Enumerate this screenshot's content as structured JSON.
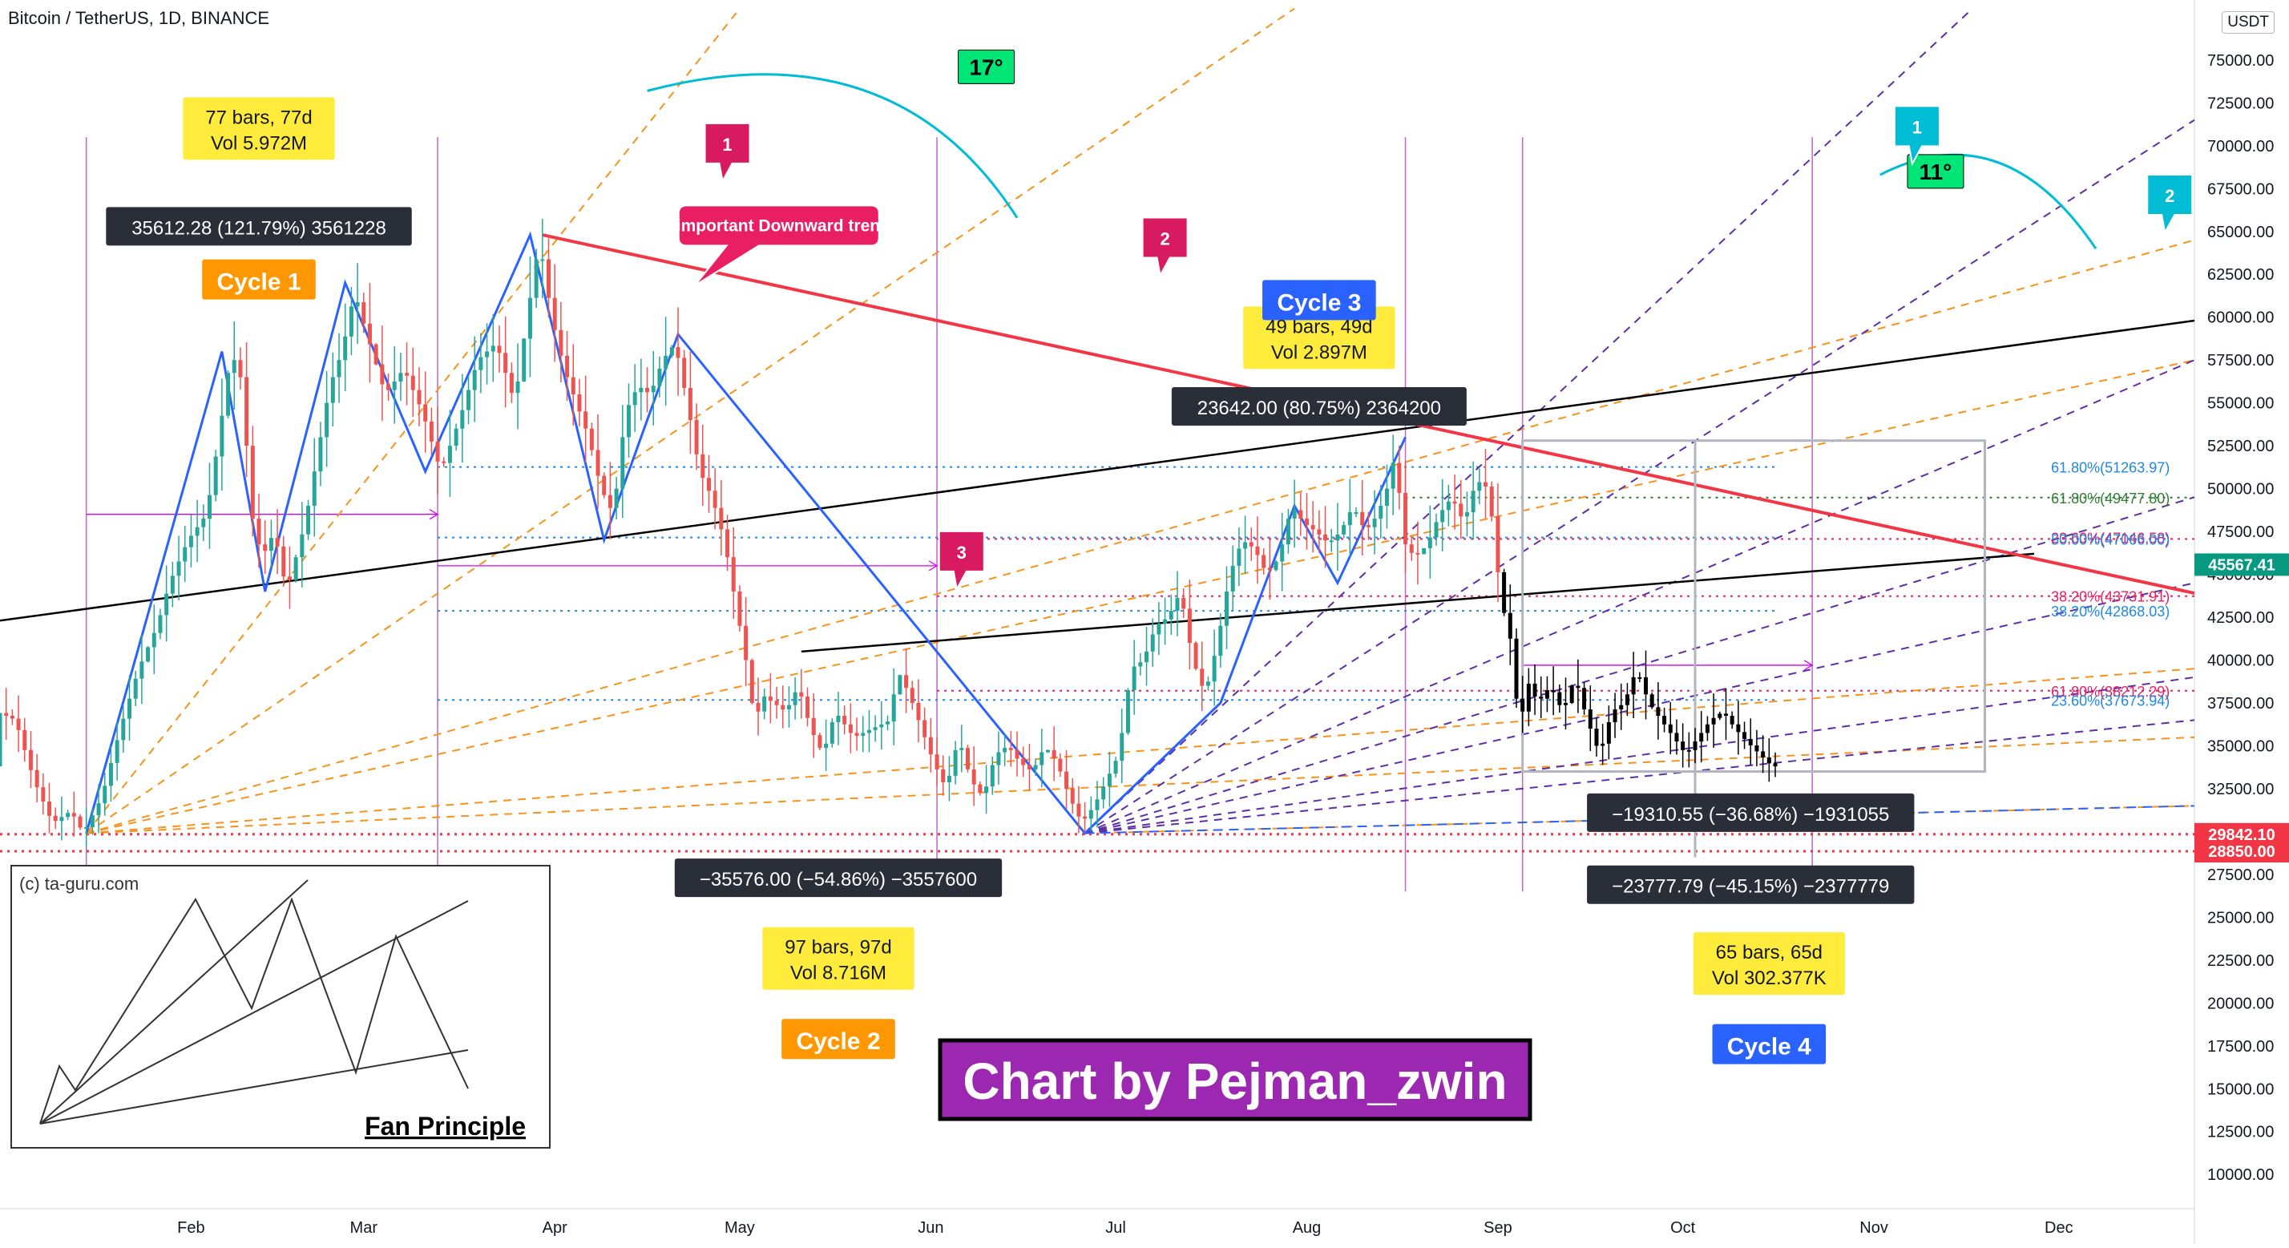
{
  "header": {
    "title": "Bitcoin / TetherUS, 1D, BINANCE",
    "currency": "USDT"
  },
  "colors": {
    "trendline": "#f23645",
    "black_line": "#000000",
    "orange_fan": "#f7931a",
    "purple_fan": "#5b2fa8",
    "blue_zigzag": "#2962ff",
    "magenta": "#d500f9",
    "label_dark": "#2a2e39",
    "label_yellow": "#ffeb3b",
    "cycle_orange": "#ff9800",
    "cycle_blue": "#2962ff",
    "marker": "#d81b60",
    "teal_marker": "#00bcd4",
    "angle_green": "#00e676",
    "credit_bg": "#9c27b0"
  },
  "chart_data": {
    "type": "candlestick",
    "y_axis": {
      "ylim": [
        8000,
        78500
      ],
      "ticks": [
        10000,
        12500,
        15000,
        17500,
        20000,
        22500,
        25000,
        27500,
        30000,
        32500,
        35000,
        37500,
        40000,
        42500,
        45000,
        47500,
        50000,
        52500,
        55000,
        57500,
        60000,
        62500,
        65000,
        67500,
        70000,
        72500,
        75000
      ],
      "tick_labels": [
        "10000.00",
        "12500.00",
        "15000.00",
        "17500.00",
        "20000.00",
        "22500.00",
        "25000.00",
        "27500.00",
        "30000.00",
        "32500.00",
        "35000.00",
        "37500.00",
        "40000.00",
        "42500.00",
        "45000.00",
        "47500.00",
        "50000.00",
        "52500.00",
        "55000.00",
        "57500.00",
        "60000.00",
        "62500.00",
        "65000.00",
        "67500.00",
        "70000.00",
        "72500.00",
        "75000.00"
      ]
    },
    "x_axis": {
      "labels": [
        {
          "label": "Feb",
          "day": 31
        },
        {
          "label": "Mar",
          "day": 59
        },
        {
          "label": "Apr",
          "day": 90
        },
        {
          "label": "May",
          "day": 120
        },
        {
          "label": "Jun",
          "day": 151
        },
        {
          "label": "Jul",
          "day": 181
        },
        {
          "label": "Aug",
          "day": 212
        },
        {
          "label": "Sep",
          "day": 243
        },
        {
          "label": "Oct",
          "day": 273
        },
        {
          "label": "Nov",
          "day": 304
        },
        {
          "label": "Dec",
          "day": 334
        }
      ],
      "xlim": [
        0,
        356
      ]
    },
    "price_keypoints": [
      [
        0,
        37000
      ],
      [
        3,
        36500
      ],
      [
        6,
        33000
      ],
      [
        9,
        30500
      ],
      [
        12,
        31200
      ],
      [
        14,
        29900
      ],
      [
        17,
        32000
      ],
      [
        20,
        36000
      ],
      [
        23,
        39500
      ],
      [
        26,
        42000
      ],
      [
        28,
        44500
      ],
      [
        31,
        47000
      ],
      [
        34,
        48500
      ],
      [
        36,
        53000
      ],
      [
        38,
        58000
      ],
      [
        40,
        56000
      ],
      [
        41,
        49000
      ],
      [
        43,
        46000
      ],
      [
        45,
        47500
      ],
      [
        47,
        44000
      ],
      [
        50,
        48000
      ],
      [
        52,
        52000
      ],
      [
        54,
        56000
      ],
      [
        56,
        58000
      ],
      [
        58,
        61500
      ],
      [
        60,
        59000
      ],
      [
        63,
        55500
      ],
      [
        66,
        57000
      ],
      [
        69,
        54500
      ],
      [
        72,
        51000
      ],
      [
        75,
        54000
      ],
      [
        78,
        57500
      ],
      [
        81,
        58500
      ],
      [
        84,
        55000
      ],
      [
        86,
        60000
      ],
      [
        88,
        64500
      ],
      [
        90,
        60000
      ],
      [
        92,
        57000
      ],
      [
        94,
        55000
      ],
      [
        96,
        53000
      ],
      [
        98,
        50000
      ],
      [
        100,
        48500
      ],
      [
        102,
        54500
      ],
      [
        104,
        56000
      ],
      [
        106,
        55500
      ],
      [
        108,
        57500
      ],
      [
        110,
        58500
      ],
      [
        112,
        55000
      ],
      [
        114,
        51000
      ],
      [
        116,
        49500
      ],
      [
        118,
        47000
      ],
      [
        119,
        45000
      ],
      [
        120,
        43000
      ],
      [
        122,
        39000
      ],
      [
        123,
        36000
      ],
      [
        124,
        38000
      ],
      [
        126,
        37500
      ],
      [
        128,
        37000
      ],
      [
        130,
        38500
      ],
      [
        132,
        36000
      ],
      [
        134,
        34500
      ],
      [
        136,
        37000
      ],
      [
        139,
        35500
      ],
      [
        142,
        36000
      ],
      [
        145,
        36500
      ],
      [
        146,
        39500
      ],
      [
        148,
        38000
      ],
      [
        150,
        36000
      ],
      [
        152,
        34000
      ],
      [
        154,
        32500
      ],
      [
        156,
        35500
      ],
      [
        158,
        33000
      ],
      [
        160,
        32000
      ],
      [
        162,
        34500
      ],
      [
        164,
        35000
      ],
      [
        166,
        34000
      ],
      [
        168,
        33500
      ],
      [
        170,
        35000
      ],
      [
        172,
        34000
      ],
      [
        174,
        32000
      ],
      [
        176,
        30500
      ],
      [
        178,
        31500
      ],
      [
        180,
        33000
      ],
      [
        182,
        34500
      ],
      [
        184,
        39500
      ],
      [
        186,
        40000
      ],
      [
        188,
        42000
      ],
      [
        190,
        42500
      ],
      [
        192,
        44000
      ],
      [
        194,
        40000
      ],
      [
        196,
        38000
      ],
      [
        198,
        41000
      ],
      [
        200,
        45000
      ],
      [
        202,
        47000
      ],
      [
        204,
        46500
      ],
      [
        206,
        45000
      ],
      [
        208,
        46000
      ],
      [
        210,
        49000
      ],
      [
        212,
        48000
      ],
      [
        214,
        47500
      ],
      [
        216,
        46800
      ],
      [
        218,
        47500
      ],
      [
        220,
        49000
      ],
      [
        222,
        47500
      ],
      [
        224,
        48500
      ],
      [
        226,
        50500
      ],
      [
        227,
        52500
      ],
      [
        228,
        47000
      ],
      [
        230,
        46000
      ],
      [
        232,
        46700
      ],
      [
        234,
        48500
      ],
      [
        236,
        49500
      ],
      [
        238,
        48000
      ],
      [
        240,
        50500
      ],
      [
        242,
        50000
      ],
      [
        244,
        43500
      ],
      [
        246,
        40500
      ],
      [
        247,
        35000
      ],
      [
        248,
        39000
      ],
      [
        250,
        37500
      ],
      [
        252,
        38500
      ],
      [
        254,
        37000
      ],
      [
        256,
        39000
      ],
      [
        258,
        36500
      ],
      [
        260,
        34500
      ],
      [
        262,
        37000
      ],
      [
        264,
        37500
      ],
      [
        266,
        39500
      ],
      [
        268,
        37500
      ],
      [
        270,
        36500
      ],
      [
        272,
        35500
      ],
      [
        274,
        34500
      ],
      [
        276,
        35500
      ],
      [
        278,
        36500
      ],
      [
        280,
        37000
      ],
      [
        282,
        36000
      ],
      [
        284,
        35200
      ],
      [
        286,
        34500
      ],
      [
        288,
        33800
      ]
    ],
    "black_candle_start_day": 244,
    "markers": [
      {
        "id": "1",
        "x": 118,
        "y": 70000,
        "color": "#d81b60"
      },
      {
        "id": "2",
        "x": 189,
        "y": 64500,
        "color": "#d81b60"
      },
      {
        "id": "3",
        "x": 156,
        "y": 46200,
        "color": "#d81b60"
      },
      {
        "id": "1",
        "x": 311,
        "y": 71000,
        "color": "#00bcd4"
      },
      {
        "id": "2",
        "x": 352,
        "y": 67000,
        "color": "#00bcd4"
      }
    ],
    "angles": [
      {
        "label": "17°",
        "x": 160,
        "y": 74600
      },
      {
        "label": "11°",
        "x": 314,
        "y": 68500
      }
    ],
    "fib_levels": [
      {
        "label": "61.80%(51263.97)",
        "y": 51263.97,
        "color": "#1e88e5"
      },
      {
        "label": "61.80%(49477.80)",
        "y": 49477.8,
        "color": "#2e7d32"
      },
      {
        "label": "23.60%(47146.58)",
        "y": 47146.58,
        "color": "#e91e63"
      },
      {
        "label": "50.00%(47066.00)",
        "y": 47066.0,
        "color": "#1e88e5"
      },
      {
        "label": "38.20%(43731.91)",
        "y": 43731.91,
        "color": "#e91e63"
      },
      {
        "label": "38.20%(42868.03)",
        "y": 42868.03,
        "color": "#1e88e5"
      },
      {
        "label": "61.80%(38212.29)",
        "y": 38212.29,
        "color": "#e91e63"
      },
      {
        "label": "23.60%(37673.94)",
        "y": 37673.94,
        "color": "#1e88e5"
      }
    ],
    "price_tags": [
      {
        "value": "45567.41",
        "y": 45567.41,
        "bg": "#089981"
      },
      {
        "value": "29842.10",
        "y": 29842.1,
        "bg": "#f23645"
      },
      {
        "value": "28850.00",
        "y": 28850.0,
        "bg": "#f23645"
      }
    ],
    "cycle_labels": [
      {
        "text": "Cycle 1",
        "x": 42,
        "y": 62200,
        "bg": "#ff9800",
        "fg": "#ffffff"
      },
      {
        "text": "Cycle 2",
        "x": 136,
        "y": 17900,
        "bg": "#ff9800",
        "fg": "#ffffff"
      },
      {
        "text": "Cycle 3",
        "x": 214,
        "y": 61000,
        "bg": "#2962ff",
        "fg": "#ffffff"
      },
      {
        "text": "Cycle 4",
        "x": 287,
        "y": 17600,
        "bg": "#2962ff",
        "fg": "#ffffff"
      }
    ],
    "yellow_boxes": [
      {
        "lines": [
          "77 bars, 77d",
          "Vol 5.972M"
        ],
        "x": 42,
        "y": 71000
      },
      {
        "lines": [
          "97 bars, 97d",
          "Vol 8.716M"
        ],
        "x": 136,
        "y": 22600
      },
      {
        "lines": [
          "49 bars, 49d",
          "Vol 2.897M"
        ],
        "x": 214,
        "y": 58800
      },
      {
        "lines": [
          "65 bars, 65d",
          "Vol 302.377K"
        ],
        "x": 287,
        "y": 22300
      }
    ],
    "dark_boxes": [
      {
        "text": "35612.28 (121.79%) 3561228",
        "x": 42,
        "y": 65300
      },
      {
        "text": "−35576.00 (−54.86%) −3557600",
        "x": 136,
        "y": 27300
      },
      {
        "text": "23642.00 (80.75%) 2364200",
        "x": 214,
        "y": 54800
      },
      {
        "text": "−19310.55 (−36.68%) −1931055",
        "x": 284,
        "y": 31100
      },
      {
        "text": "−23777.79 (−45.15%) −2377779",
        "x": 284,
        "y": 26900
      }
    ],
    "callout": {
      "text": "The important Downward trend line",
      "x": 127,
      "y": 65300
    },
    "inset": {
      "source": "(c) ta-guru.com",
      "caption": "Fan Principle"
    },
    "credit": "Chart by Pejman_zwin"
  }
}
